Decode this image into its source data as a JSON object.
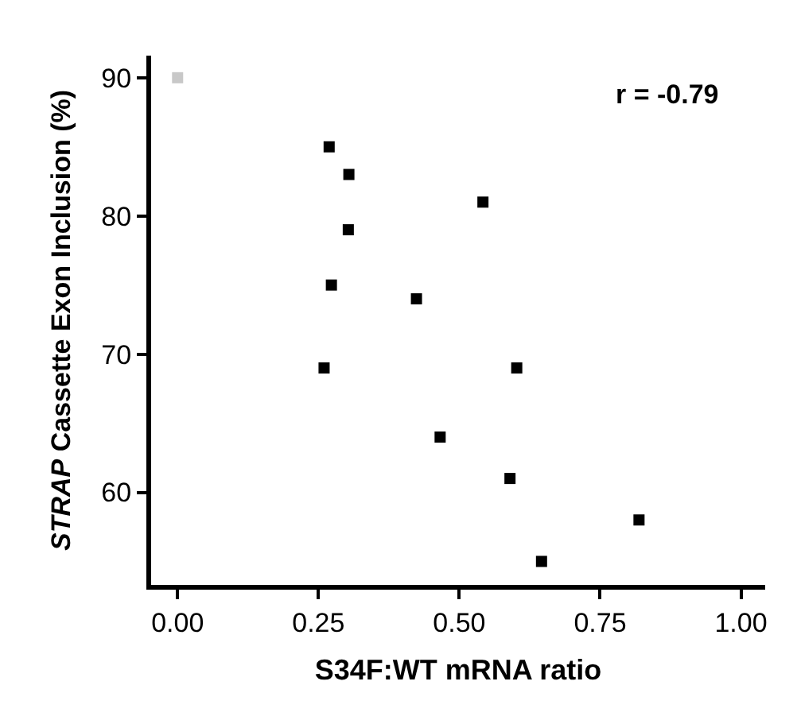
{
  "chart_data": {
    "type": "scatter",
    "xlabel": "S34F:WT mRNA ratio",
    "ylabel": "STRAP Cassette Exon Inclusion (%)",
    "x": [
      0.0,
      0.269,
      0.304,
      0.542,
      0.303,
      0.273,
      0.424,
      0.26,
      0.602,
      0.466,
      0.59,
      0.819,
      0.646
    ],
    "values": [
      90,
      85,
      83,
      81,
      79,
      75,
      74,
      69,
      69,
      64,
      61,
      58,
      55
    ],
    "colors": [
      "#c8c8c8",
      "#000000",
      "#000000",
      "#000000",
      "#000000",
      "#000000",
      "#000000",
      "#000000",
      "#000000",
      "#000000",
      "#000000",
      "#000000",
      "#000000"
    ],
    "marker": "square",
    "xlim": [
      -0.047,
      1.043
    ],
    "ylim": [
      53.3,
      91.6
    ],
    "xticks": [
      {
        "value": 0,
        "label": "0.00"
      },
      {
        "value": 0.25,
        "label": "0.25"
      },
      {
        "value": 0.5,
        "label": "0.50"
      },
      {
        "value": 0.75,
        "label": "0.75"
      },
      {
        "value": 1,
        "label": "1.00"
      }
    ],
    "yticks": [
      60,
      70,
      80,
      90
    ],
    "legend": false,
    "annotations": [
      "r = -0.79"
    ]
  }
}
